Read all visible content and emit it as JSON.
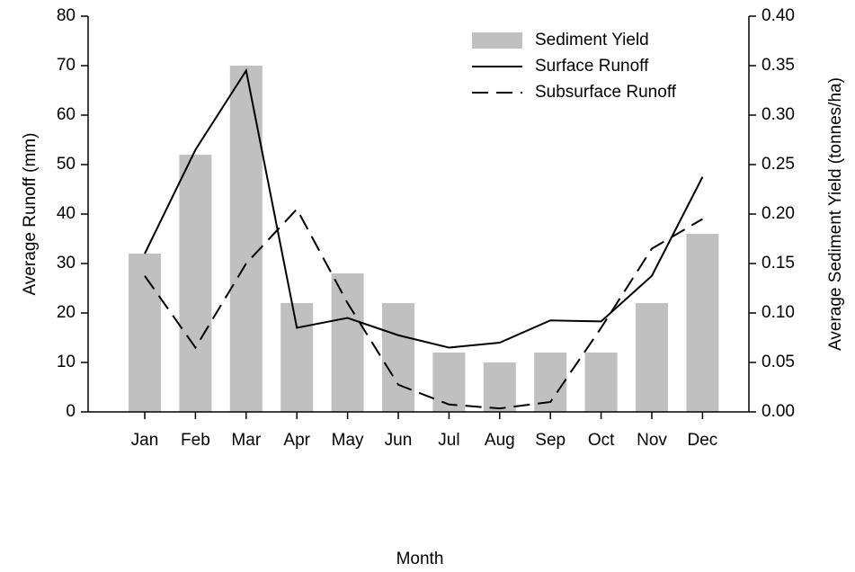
{
  "chart_data": {
    "type": "bar-line",
    "x_label": "Month",
    "y_label": "Average Runoff (mm)",
    "y2_label": "Average Sediment Yield (tonnes/ha)",
    "categories": [
      "Jan",
      "Feb",
      "Mar",
      "Apr",
      "May",
      "Jun",
      "Jul",
      "Aug",
      "Sep",
      "Oct",
      "Nov",
      "Dec"
    ],
    "ylim": [
      0,
      80
    ],
    "yticks": [
      0,
      10,
      20,
      30,
      40,
      50,
      60,
      70,
      80
    ],
    "y2lim": [
      0,
      0.4
    ],
    "y2ticks": [
      {
        "value": 0,
        "label": "0.00"
      },
      0.05,
      {
        "value": 0.1,
        "label": "0.10"
      },
      0.15,
      {
        "value": 0.2,
        "label": "0.20"
      },
      0.25,
      {
        "value": 0.3,
        "label": "0.30"
      },
      0.35,
      {
        "value": 0.4,
        "label": "0.40"
      }
    ],
    "legend": "upper right",
    "series": [
      {
        "name": "Sediment Yield",
        "type": "bar",
        "axis": "y2",
        "color": "#c0c0c0",
        "values": [
          0.16,
          0.26,
          0.35,
          0.11,
          0.14,
          0.11,
          0.06,
          0.05,
          0.06,
          0.06,
          0.11,
          0.18
        ]
      },
      {
        "name": "Surface Runoff",
        "type": "line",
        "dash": "solid",
        "color": "#000000",
        "values": [
          32,
          53,
          69,
          17,
          19,
          15.5,
          13,
          14,
          18.5,
          18.3,
          27.5,
          47.5
        ]
      },
      {
        "name": "Subsurface Runoff",
        "type": "line",
        "dash": "dashed",
        "color": "#000000",
        "values": [
          27.5,
          13,
          30,
          41,
          22,
          5.5,
          1.5,
          0.7,
          2,
          17,
          33,
          39
        ]
      }
    ]
  }
}
